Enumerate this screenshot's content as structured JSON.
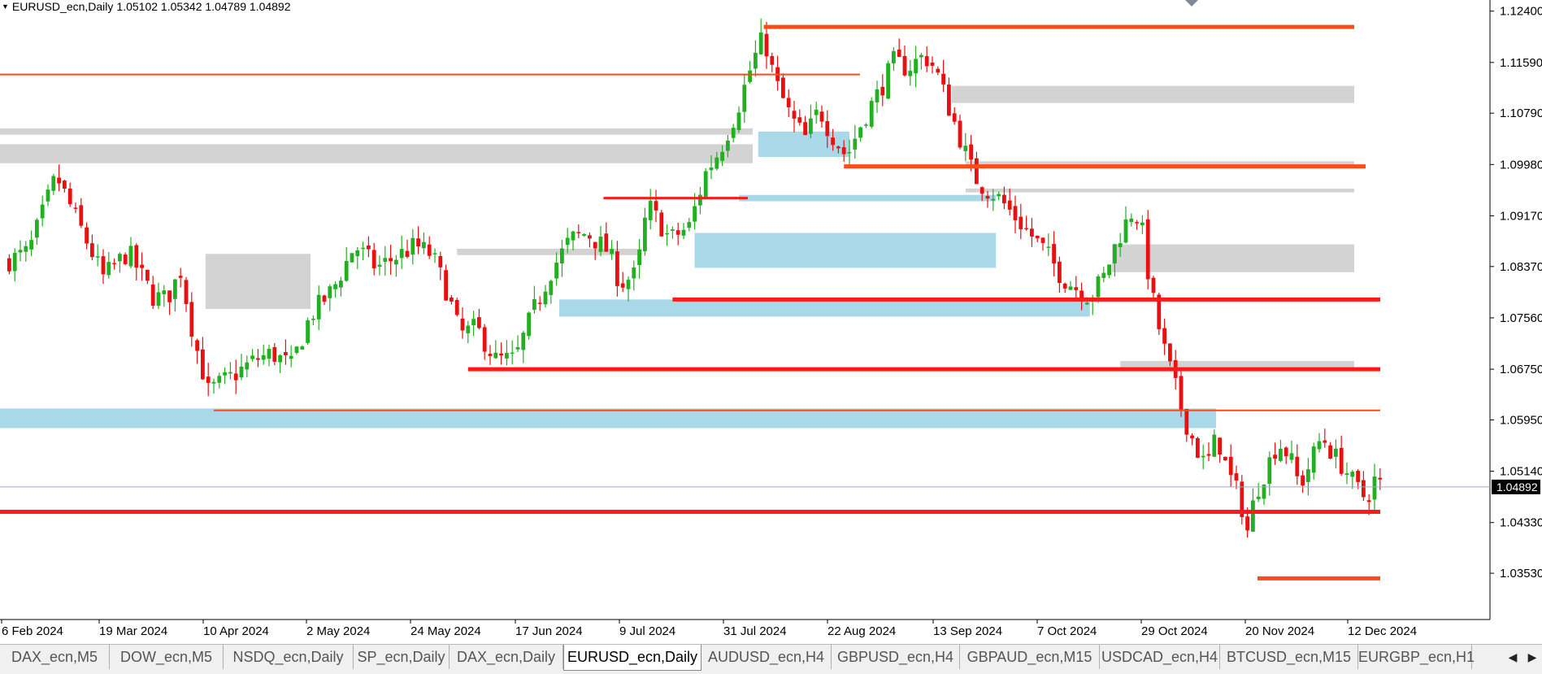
{
  "header": {
    "symbol": "EURUSD_ecn,Daily",
    "ohlc": "1.05102 1.05342 1.04789 1.04892"
  },
  "tabs": [
    {
      "label": "DAX_ecn,M5",
      "active": false
    },
    {
      "label": "DOW_ecn,M5",
      "active": false
    },
    {
      "label": "NSDQ_ecn,Daily",
      "active": false
    },
    {
      "label": "SP_ecn,Daily",
      "active": false
    },
    {
      "label": "DAX_ecn,Daily",
      "active": false
    },
    {
      "label": "EURUSD_ecn,Daily",
      "active": true
    },
    {
      "label": "AUDUSD_ecn,H4",
      "active": false
    },
    {
      "label": "GBPUSD_ecn,H4",
      "active": false
    },
    {
      "label": "GBPAUD_ecn,M15",
      "active": false
    },
    {
      "label": "USDCAD_ecn,H4",
      "active": false
    },
    {
      "label": "BTCUSD_ecn,M15",
      "active": false
    },
    {
      "label": "EURGBP_ecn,H1",
      "active": false
    }
  ],
  "colors": {
    "bull": "#22b022",
    "bear": "#e81010",
    "red_line": "#ff1a1a",
    "orange_line": "#ff4a1a",
    "blue_zone": "#a9d8e8",
    "gray_zone": "#d3d3d3",
    "current_price_line": "#9aa8c8",
    "price_tag_bg": "#000000"
  },
  "chart_data": {
    "type": "candlestick",
    "symbol": "EURUSD_ecn",
    "timeframe": "Daily",
    "y_ticks": [
      "1.12400",
      "1.11590",
      "1.10790",
      "1.09980",
      "1.09170",
      "1.08370",
      "1.07560",
      "1.06750",
      "1.05950",
      "1.05140",
      "1.04330",
      "1.03530"
    ],
    "x_ticks": [
      "6 Feb 2024",
      "19 Mar 2024",
      "10 Apr 2024",
      "2 May 2024",
      "24 May 2024",
      "17 Jun 2024",
      "9 Jul 2024",
      "31 Jul 2024",
      "22 Aug 2024",
      "13 Sep 2024",
      "7 Oct 2024",
      "29 Oct 2024",
      "20 Nov 2024",
      "12 Dec 2024"
    ],
    "ylim": [
      1.028,
      1.1255
    ],
    "current_price": "1.04892",
    "ohlc": {
      "open": 1.05102,
      "high": 1.05342,
      "low": 1.04789,
      "close": 1.04892
    },
    "close_path": [
      [
        0,
        1.0845
      ],
      [
        8,
        1.086
      ],
      [
        18,
        1.098
      ],
      [
        26,
        1.0905
      ],
      [
        35,
        1.082
      ],
      [
        44,
        1.086
      ],
      [
        53,
        1.079
      ],
      [
        58,
        1.0785
      ],
      [
        63,
        1.083
      ],
      [
        68,
        1.072
      ],
      [
        73,
        1.064
      ],
      [
        82,
        1.0665
      ],
      [
        90,
        1.069
      ],
      [
        96,
        1.07
      ],
      [
        103,
        1.068
      ],
      [
        110,
        1.076
      ],
      [
        118,
        1.08
      ],
      [
        126,
        1.087
      ],
      [
        134,
        1.0835
      ],
      [
        142,
        1.0855
      ],
      [
        148,
        1.087
      ],
      [
        154,
        1.0855
      ],
      [
        160,
        1.079
      ],
      [
        164,
        1.073
      ],
      [
        170,
        1.074
      ],
      [
        177,
        1.069
      ],
      [
        184,
        1.069
      ],
      [
        190,
        1.076
      ],
      [
        197,
        1.083
      ],
      [
        204,
        1.088
      ],
      [
        210,
        1.089
      ],
      [
        218,
        1.086
      ],
      [
        222,
        1.081
      ],
      [
        228,
        1.0825
      ],
      [
        232,
        1.0935
      ],
      [
        240,
        1.088
      ],
      [
        247,
        1.09
      ],
      [
        253,
        1.0985
      ],
      [
        258,
        1.102
      ],
      [
        264,
        1.108
      ],
      [
        270,
        1.116
      ],
      [
        274,
        1.12
      ],
      [
        278,
        1.113
      ],
      [
        284,
        1.107
      ],
      [
        289,
        1.104
      ],
      [
        294,
        1.1085
      ],
      [
        298,
        1.105
      ],
      [
        304,
        1.101
      ],
      [
        310,
        1.107
      ],
      [
        316,
        1.1115
      ],
      [
        321,
        1.116
      ],
      [
        326,
        1.115
      ],
      [
        332,
        1.117
      ],
      [
        336,
        1.115
      ],
      [
        340,
        1.11
      ],
      [
        345,
        1.104
      ],
      [
        350,
        1.098
      ],
      [
        354,
        1.096
      ],
      [
        358,
        1.095
      ],
      [
        364,
        1.092
      ],
      [
        370,
        1.089
      ],
      [
        376,
        1.086
      ],
      [
        382,
        1.082
      ],
      [
        388,
        1.08
      ],
      [
        392,
        1.079
      ],
      [
        397,
        1.082
      ],
      [
        402,
        1.088
      ],
      [
        408,
        1.093
      ],
      [
        411,
        1.089
      ],
      [
        414,
        1.08
      ],
      [
        418,
        1.072
      ],
      [
        422,
        1.066
      ],
      [
        426,
        1.06
      ],
      [
        430,
        1.0555
      ],
      [
        434,
        1.052
      ],
      [
        438,
        1.057
      ],
      [
        442,
        1.051
      ],
      [
        446,
        1.0475
      ],
      [
        449,
        1.042
      ],
      [
        452,
        1.048
      ],
      [
        456,
        1.052
      ],
      [
        460,
        1.056
      ],
      [
        464,
        1.054
      ],
      [
        468,
        1.049
      ],
      [
        472,
        1.053
      ],
      [
        476,
        1.057
      ],
      [
        480,
        1.054
      ],
      [
        484,
        1.052
      ],
      [
        488,
        1.049
      ],
      [
        492,
        1.047
      ],
      [
        495,
        1.05
      ],
      [
        498,
        1.0489
      ]
    ],
    "levels": [
      {
        "kind": "line",
        "color": "orange",
        "price": 1.1215,
        "from": 274,
        "to": 398,
        "weight": 5
      },
      {
        "kind": "line",
        "color": "orange",
        "price": 1.114,
        "from": 0,
        "to": 282,
        "weight": 2
      },
      {
        "kind": "line",
        "color": "orange",
        "price": 1.0995,
        "from": 303,
        "to": 405,
        "weight": 5
      },
      {
        "kind": "line",
        "color": "red",
        "price": 1.0945,
        "from": 216,
        "to": 247,
        "weight": 3
      },
      {
        "kind": "line",
        "color": "red",
        "price": 1.0785,
        "from": 241,
        "to": 410,
        "weight": 5
      },
      {
        "kind": "line",
        "color": "red",
        "price": 1.0675,
        "from": 167,
        "to": 410,
        "weight": 5
      },
      {
        "kind": "line",
        "color": "orange",
        "price": 1.061,
        "from": 75,
        "to": 410,
        "weight": 2
      },
      {
        "kind": "line",
        "color": "red",
        "price": 1.045,
        "from": 0,
        "to": 410,
        "weight": 5
      },
      {
        "kind": "line",
        "color": "orange",
        "price": 1.0345,
        "from": 449,
        "to": 410,
        "weight": 5
      },
      {
        "kind": "zone",
        "color": "gray",
        "hi": 1.1055,
        "lo": 1.1045,
        "from": 0,
        "to": 270
      },
      {
        "kind": "zone",
        "color": "gray",
        "hi": 1.103,
        "lo": 1.1,
        "from": 0,
        "to": 270
      },
      {
        "kind": "zone",
        "color": "gray",
        "hi": 1.1122,
        "lo": 1.1095,
        "from": 342,
        "to": 398
      },
      {
        "kind": "zone",
        "color": "gray",
        "hi": 1.1003,
        "lo": 1.0995,
        "from": 347,
        "to": 398
      },
      {
        "kind": "zone",
        "color": "gray",
        "hi": 1.096,
        "lo": 1.0954,
        "from": 347,
        "to": 398
      },
      {
        "kind": "zone",
        "color": "gray",
        "hi": 1.0872,
        "lo": 1.0828,
        "from": 400,
        "to": 398
      },
      {
        "kind": "zone",
        "color": "gray",
        "hi": 1.0857,
        "lo": 1.077,
        "from": 72,
        "to": 110
      },
      {
        "kind": "zone",
        "color": "gray",
        "hi": 1.0865,
        "lo": 1.0855,
        "from": 163,
        "to": 230
      },
      {
        "kind": "zone",
        "color": "gray",
        "hi": 1.0688,
        "lo": 1.0672,
        "from": 403,
        "to": 398
      },
      {
        "kind": "zone",
        "color": "blue",
        "hi": 1.089,
        "lo": 1.0835,
        "from": 249,
        "to": 358
      },
      {
        "kind": "zone",
        "color": "blue",
        "hi": 1.0785,
        "lo": 1.0758,
        "from": 200,
        "to": 392
      },
      {
        "kind": "zone",
        "color": "blue",
        "hi": 1.095,
        "lo": 1.094,
        "from": 265,
        "to": 358
      },
      {
        "kind": "zone",
        "color": "blue",
        "hi": 1.105,
        "lo": 1.101,
        "from": 272,
        "to": 305
      },
      {
        "kind": "zone",
        "color": "blue",
        "hi": 1.0613,
        "lo": 1.0582,
        "from": 0,
        "to": 405
      }
    ]
  }
}
